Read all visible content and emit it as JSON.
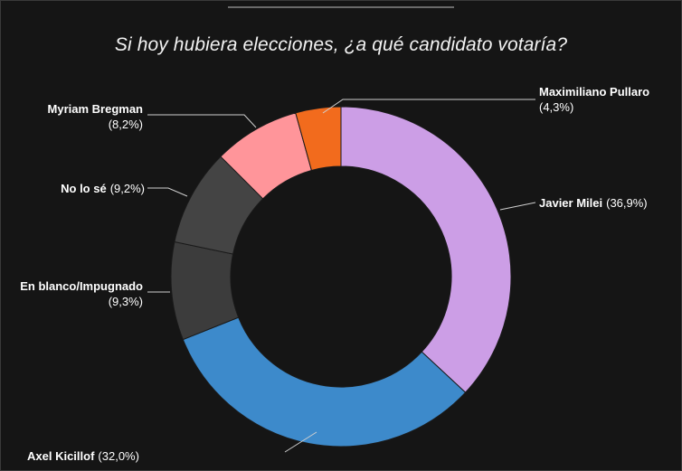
{
  "title": "Si hoy hubiera elecciones, ¿a qué candidato votaría?",
  "chart_data": {
    "type": "pie",
    "donut": true,
    "title": "Si hoy hubiera elecciones, ¿a qué candidato votaría?",
    "slices": [
      {
        "name": "Javier Milei",
        "value": 36.9,
        "value_label": "(36,9%)",
        "color": "#cc9ee6"
      },
      {
        "name": "Axel Kicillof",
        "value": 32.0,
        "value_label": "(32,0%)",
        "color": "#3d8acb"
      },
      {
        "name": "En blanco/Impugnado",
        "value": 9.3,
        "value_label": "(9,3%)",
        "color": "#3c3c3c"
      },
      {
        "name": "No lo sé",
        "value": 9.2,
        "value_label": "(9,2%)",
        "color": "#444444"
      },
      {
        "name": "Myriam Bregman",
        "value": 8.2,
        "value_label": "(8,2%)",
        "color": "#ff959a"
      },
      {
        "name": "Maximiliano Pullaro",
        "value": 4.3,
        "value_label": "(4,3%)",
        "color": "#f26b1d"
      }
    ]
  }
}
